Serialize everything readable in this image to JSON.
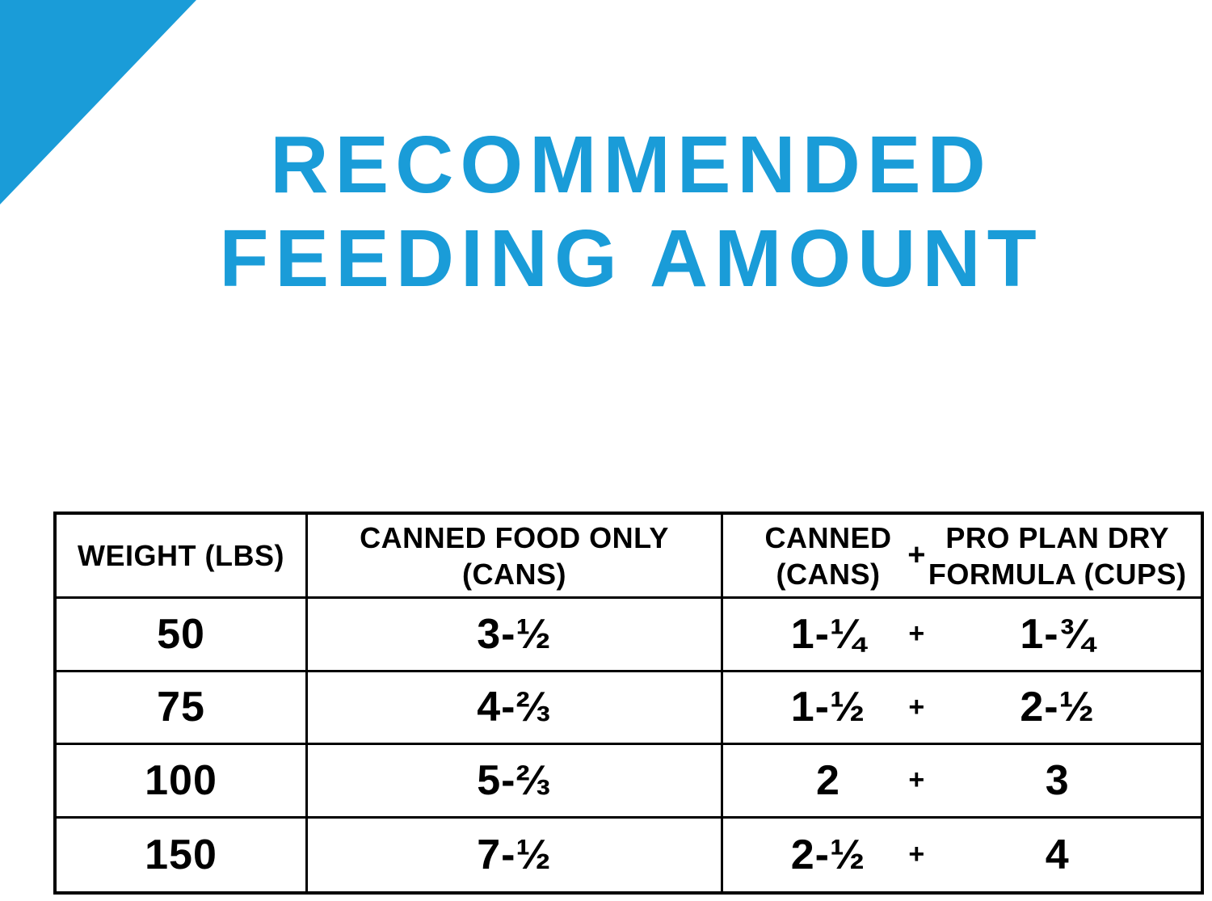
{
  "accent_color": "#1a9cd8",
  "title": {
    "line1": "RECOMMENDED",
    "line2": "FEEDING AMOUNT"
  },
  "table": {
    "header": {
      "weight": "WEIGHT (LBS)",
      "canned_only_line1": "CANNED FOOD ONLY",
      "canned_only_line2": "(CANS)",
      "canned_line1": "CANNED",
      "canned_line2": "(CANS)",
      "plus": "+",
      "dry_line1": "PRO PLAN DRY",
      "dry_line2": "FORMULA (CUPS)"
    },
    "rows": [
      {
        "weight": "50",
        "canned_only": "3-½",
        "canned": "1-¼",
        "plus": "+",
        "dry": "1-¾"
      },
      {
        "weight": "75",
        "canned_only": "4-⅔",
        "canned": "1-½",
        "plus": "+",
        "dry": "2-½"
      },
      {
        "weight": "100",
        "canned_only": "5-⅔",
        "canned": "2",
        "plus": "+",
        "dry": "3"
      },
      {
        "weight": "150",
        "canned_only": "7-½",
        "canned": "2-½",
        "plus": "+",
        "dry": "4"
      }
    ]
  },
  "chart_data": {
    "type": "table",
    "title": "RECOMMENDED FEEDING AMOUNT",
    "columns": [
      "WEIGHT (LBS)",
      "CANNED FOOD ONLY (CANS)",
      "CANNED (CANS)",
      "PRO PLAN DRY FORMULA (CUPS)"
    ],
    "rows": [
      [
        "50",
        "3-½",
        "1-¼",
        "1-¾"
      ],
      [
        "75",
        "4-⅔",
        "1-½",
        "2-½"
      ],
      [
        "100",
        "5-⅔",
        "2",
        "3"
      ],
      [
        "150",
        "7-½",
        "2-½",
        "4"
      ]
    ],
    "notes": "Third and fourth data columns are combined in one bordered column as 'CANNED (CANS) + PRO PLAN DRY FORMULA (CUPS)' with a plus sign between values."
  }
}
